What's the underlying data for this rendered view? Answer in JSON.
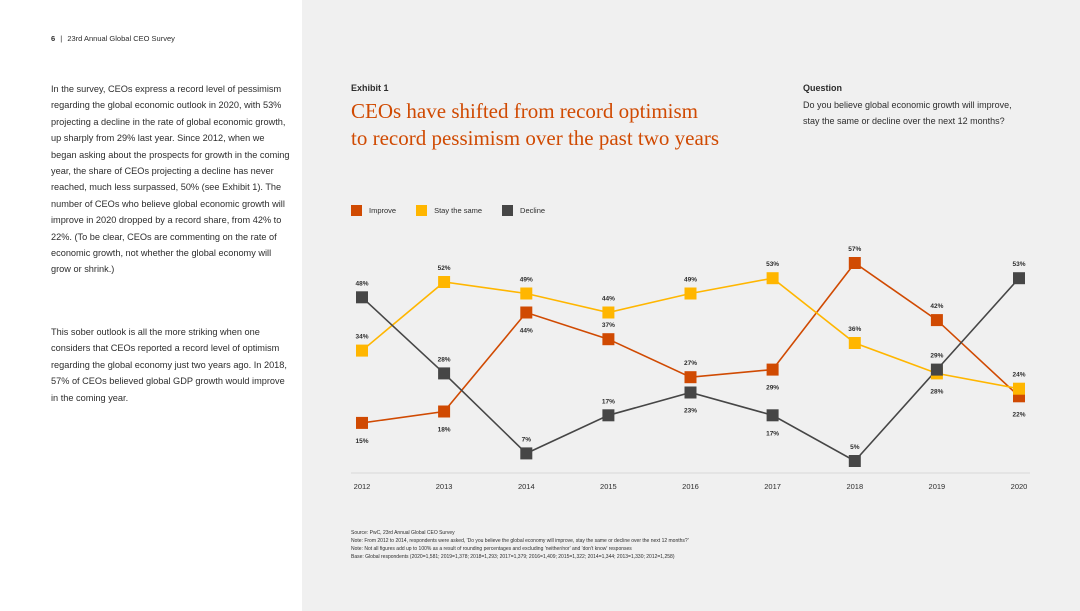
{
  "page": {
    "number": "6",
    "separator": "|",
    "publication": "23rd Annual Global CEO Survey"
  },
  "body": {
    "paragraph1": "In the survey, CEOs express a record level of pessimism regarding the global economic outlook in 2020, with 53% projecting a decline in the rate of global economic growth, up sharply from 29% last year. Since 2012, when we began asking about the prospects for growth in the coming year, the share of CEOs projecting a decline has never reached, much less surpassed, 50% (see Exhibit 1). The number of CEOs who believe global economic growth will improve in 2020 dropped by a record share, from 42% to 22%. (To be clear, CEOs are commenting on the rate of economic growth, not whether the global economy will grow or shrink.)",
    "paragraph2": "This sober outlook is all the more striking when one considers that CEOs reported a record level of optimism regarding the global economy just two years ago. In 2018, 57% of CEOs believed global GDP growth would improve in the coming year."
  },
  "exhibit": {
    "label": "Exhibit 1",
    "title_line1": "CEOs have shifted from record optimism",
    "title_line2": "to record pessimism over the past two years"
  },
  "question": {
    "label": "Question",
    "text": "Do you believe global economic growth will improve, stay the same or decline over the next 12 months?"
  },
  "chart_data": {
    "type": "line",
    "title": "CEOs have shifted from record optimism to record pessimism over the past two years",
    "xlabel": "",
    "ylabel": "",
    "ylim": [
      0,
      65
    ],
    "grid": false,
    "legend_position": "top-left",
    "categories": [
      "2012",
      "2013",
      "2014",
      "2015",
      "2016",
      "2017",
      "2018",
      "2019",
      "2020"
    ],
    "series": [
      {
        "name": "Improve",
        "color": "#d04a02",
        "values": [
          15,
          18,
          44,
          37,
          27,
          29,
          57,
          42,
          22
        ],
        "labels": [
          "15%",
          "18%",
          "44%",
          "37%",
          "27%",
          "29%",
          "57%",
          "42%",
          "22%"
        ],
        "label_side": [
          "below",
          "below",
          "below",
          "above",
          "above",
          "below",
          "above",
          "above",
          "below"
        ]
      },
      {
        "name": "Stay the same",
        "color": "#ffb600",
        "values": [
          34,
          52,
          49,
          44,
          49,
          53,
          36,
          28,
          24
        ],
        "labels": [
          "34%",
          "52%",
          "49%",
          "44%",
          "49%",
          "53%",
          "36%",
          "28%",
          "24%"
        ],
        "label_side": [
          "above",
          "above",
          "above",
          "above",
          "above",
          "above",
          "above",
          "below",
          "above"
        ]
      },
      {
        "name": "Decline",
        "color": "#464646",
        "values": [
          48,
          28,
          7,
          17,
          23,
          17,
          5,
          29,
          53
        ],
        "labels": [
          "48%",
          "28%",
          "7%",
          "17%",
          "23%",
          "17%",
          "5%",
          "29%",
          "53%"
        ],
        "label_side": [
          "above",
          "above",
          "above",
          "above",
          "below",
          "below",
          "above",
          "above",
          "above"
        ]
      }
    ]
  },
  "source": {
    "line1": "Source: PwC, 23rd Annual Global CEO Survey",
    "line2": "Note: From 2012 to 2014, respondents were asked, 'Do you believe the global economy will improve, stay the same or decline over the next 12 months?'",
    "line3": "Note: Not all figures add up to 100% as a result of rounding percentages and excluding 'neither/nor' and 'don't know' responses",
    "line4": "Base: Global respondents (2020=1,581; 2019=1,378; 2018=1,293; 2017=1,379; 2016=1,409; 2015=1,322; 2014=1,344; 2013=1,330; 2012=1,258)"
  }
}
